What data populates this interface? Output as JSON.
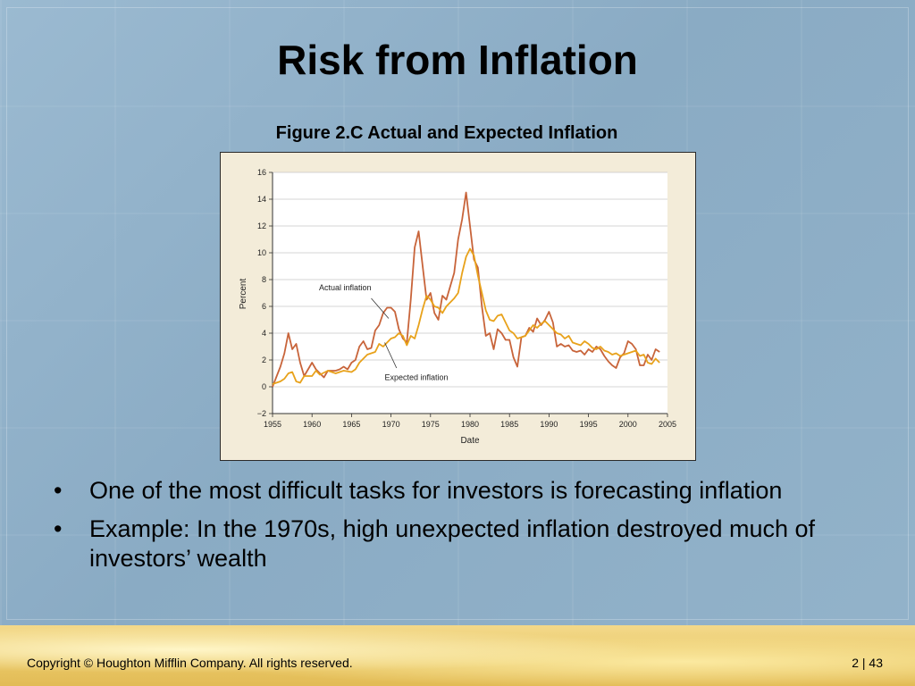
{
  "slide": {
    "title": "Risk from Inflation",
    "figure_caption": "Figure 2.C Actual and Expected Inflation",
    "bullets": [
      "One of the most difficult tasks for investors is forecasting inflation",
      "Example: In the 1970s,  high unexpected inflation destroyed much of investors’ wealth"
    ],
    "bullet_symbol": "•",
    "footer_copyright": "Copyright © Houghton Mifflin Company.  All rights reserved.",
    "footer_page": "2 | 43"
  },
  "chart_data": {
    "type": "line",
    "title": "",
    "xlabel": "Date",
    "ylabel": "Percent",
    "xlim": [
      1955,
      2005
    ],
    "ylim": [
      -2,
      16
    ],
    "x_ticks": [
      1955,
      1960,
      1965,
      1970,
      1975,
      1980,
      1985,
      1990,
      1995,
      2000,
      2005
    ],
    "y_ticks": [
      -2,
      0,
      2,
      4,
      6,
      8,
      10,
      12,
      14,
      16
    ],
    "grid": true,
    "annotations": [
      {
        "text": "Actual inflation",
        "series": "actual"
      },
      {
        "text": "Expected inflation",
        "series": "expected"
      }
    ],
    "series": [
      {
        "id": "actual",
        "color": "#c8643a",
        "points": [
          [
            1955.0,
            0.0
          ],
          [
            1956.0,
            1.5
          ],
          [
            1956.5,
            2.5
          ],
          [
            1957.0,
            4.0
          ],
          [
            1957.5,
            2.8
          ],
          [
            1958.0,
            3.2
          ],
          [
            1958.5,
            1.8
          ],
          [
            1959.0,
            0.8
          ],
          [
            1960.0,
            1.8
          ],
          [
            1960.5,
            1.3
          ],
          [
            1961.0,
            1.0
          ],
          [
            1961.5,
            0.7
          ],
          [
            1962.0,
            1.2
          ],
          [
            1963.0,
            1.2
          ],
          [
            1963.5,
            1.3
          ],
          [
            1964.0,
            1.5
          ],
          [
            1964.5,
            1.3
          ],
          [
            1965.0,
            1.8
          ],
          [
            1965.5,
            2.0
          ],
          [
            1966.0,
            3.0
          ],
          [
            1966.5,
            3.4
          ],
          [
            1967.0,
            2.8
          ],
          [
            1967.5,
            2.9
          ],
          [
            1968.0,
            4.2
          ],
          [
            1968.5,
            4.6
          ],
          [
            1969.0,
            5.5
          ],
          [
            1969.5,
            5.9
          ],
          [
            1970.0,
            5.9
          ],
          [
            1970.5,
            5.6
          ],
          [
            1971.0,
            4.3
          ],
          [
            1971.5,
            3.6
          ],
          [
            1972.0,
            3.3
          ],
          [
            1972.5,
            6.5
          ],
          [
            1973.0,
            10.4
          ],
          [
            1973.5,
            11.6
          ],
          [
            1974.0,
            9.0
          ],
          [
            1974.5,
            6.5
          ],
          [
            1975.0,
            7.0
          ],
          [
            1975.5,
            5.5
          ],
          [
            1976.0,
            5.0
          ],
          [
            1976.5,
            6.8
          ],
          [
            1977.0,
            6.5
          ],
          [
            1977.5,
            7.5
          ],
          [
            1978.0,
            8.5
          ],
          [
            1978.5,
            11.0
          ],
          [
            1979.0,
            12.5
          ],
          [
            1979.5,
            14.5
          ],
          [
            1980.0,
            12.0
          ],
          [
            1980.5,
            9.5
          ],
          [
            1981.0,
            8.9
          ],
          [
            1981.5,
            6.0
          ],
          [
            1982.0,
            3.8
          ],
          [
            1982.5,
            4.0
          ],
          [
            1983.0,
            2.8
          ],
          [
            1983.5,
            4.3
          ],
          [
            1984.0,
            4.0
          ],
          [
            1984.5,
            3.5
          ],
          [
            1985.0,
            3.5
          ],
          [
            1985.5,
            2.2
          ],
          [
            1986.0,
            1.5
          ],
          [
            1986.5,
            3.7
          ],
          [
            1987.0,
            3.8
          ],
          [
            1987.5,
            4.4
          ],
          [
            1988.0,
            4.1
          ],
          [
            1988.5,
            5.1
          ],
          [
            1989.0,
            4.6
          ],
          [
            1989.5,
            5.0
          ],
          [
            1990.0,
            5.6
          ],
          [
            1990.5,
            4.8
          ],
          [
            1991.0,
            3.0
          ],
          [
            1991.5,
            3.2
          ],
          [
            1992.0,
            3.0
          ],
          [
            1992.5,
            3.1
          ],
          [
            1993.0,
            2.7
          ],
          [
            1993.5,
            2.6
          ],
          [
            1994.0,
            2.7
          ],
          [
            1994.5,
            2.4
          ],
          [
            1995.0,
            2.8
          ],
          [
            1995.5,
            2.6
          ],
          [
            1996.0,
            3.0
          ],
          [
            1996.5,
            2.8
          ],
          [
            1997.0,
            2.3
          ],
          [
            1997.5,
            1.9
          ],
          [
            1998.0,
            1.6
          ],
          [
            1998.5,
            1.4
          ],
          [
            1999.0,
            2.2
          ],
          [
            1999.5,
            2.5
          ],
          [
            2000.0,
            3.4
          ],
          [
            2000.5,
            3.2
          ],
          [
            2001.0,
            2.8
          ],
          [
            2001.5,
            1.6
          ],
          [
            2002.0,
            1.6
          ],
          [
            2002.5,
            2.4
          ],
          [
            2003.0,
            2.0
          ],
          [
            2003.5,
            2.8
          ],
          [
            2004.0,
            2.6
          ]
        ]
      },
      {
        "id": "expected",
        "color": "#e8a21b",
        "points": [
          [
            1955.0,
            0.2
          ],
          [
            1956.0,
            0.4
          ],
          [
            1956.5,
            0.6
          ],
          [
            1957.0,
            1.0
          ],
          [
            1957.5,
            1.1
          ],
          [
            1958.0,
            0.4
          ],
          [
            1958.5,
            0.3
          ],
          [
            1959.0,
            0.8
          ],
          [
            1960.0,
            0.8
          ],
          [
            1960.5,
            1.2
          ],
          [
            1961.0,
            0.9
          ],
          [
            1962.0,
            1.2
          ],
          [
            1963.0,
            1.0
          ],
          [
            1964.0,
            1.2
          ],
          [
            1965.0,
            1.1
          ],
          [
            1965.5,
            1.3
          ],
          [
            1966.0,
            1.8
          ],
          [
            1967.0,
            2.4
          ],
          [
            1968.0,
            2.6
          ],
          [
            1968.5,
            3.2
          ],
          [
            1969.0,
            3.0
          ],
          [
            1970.0,
            3.6
          ],
          [
            1970.5,
            3.7
          ],
          [
            1971.0,
            4.0
          ],
          [
            1971.5,
            3.8
          ],
          [
            1972.0,
            3.1
          ],
          [
            1972.5,
            3.8
          ],
          [
            1973.0,
            3.6
          ],
          [
            1973.5,
            4.6
          ],
          [
            1974.0,
            5.8
          ],
          [
            1974.5,
            6.8
          ],
          [
            1975.0,
            6.5
          ],
          [
            1975.5,
            6.0
          ],
          [
            1976.0,
            5.9
          ],
          [
            1976.5,
            5.5
          ],
          [
            1977.0,
            6.0
          ],
          [
            1977.5,
            6.3
          ],
          [
            1978.0,
            6.6
          ],
          [
            1978.5,
            7.0
          ],
          [
            1979.0,
            8.5
          ],
          [
            1979.5,
            9.7
          ],
          [
            1980.0,
            10.3
          ],
          [
            1980.5,
            9.8
          ],
          [
            1981.0,
            8.3
          ],
          [
            1981.5,
            7.0
          ],
          [
            1982.0,
            5.7
          ],
          [
            1982.5,
            5.0
          ],
          [
            1983.0,
            4.9
          ],
          [
            1983.5,
            5.3
          ],
          [
            1984.0,
            5.4
          ],
          [
            1984.5,
            4.8
          ],
          [
            1985.0,
            4.2
          ],
          [
            1985.5,
            4.0
          ],
          [
            1986.0,
            3.6
          ],
          [
            1986.5,
            3.7
          ],
          [
            1987.0,
            3.8
          ],
          [
            1987.5,
            4.2
          ],
          [
            1988.0,
            4.6
          ],
          [
            1988.5,
            4.4
          ],
          [
            1989.0,
            4.7
          ],
          [
            1989.5,
            4.9
          ],
          [
            1990.0,
            4.6
          ],
          [
            1990.5,
            4.3
          ],
          [
            1991.0,
            4.0
          ],
          [
            1991.5,
            3.9
          ],
          [
            1992.0,
            3.6
          ],
          [
            1992.5,
            3.8
          ],
          [
            1993.0,
            3.3
          ],
          [
            1993.5,
            3.2
          ],
          [
            1994.0,
            3.1
          ],
          [
            1994.5,
            3.4
          ],
          [
            1995.0,
            3.2
          ],
          [
            1995.5,
            2.9
          ],
          [
            1996.0,
            2.8
          ],
          [
            1996.5,
            3.0
          ],
          [
            1997.0,
            2.7
          ],
          [
            1997.5,
            2.6
          ],
          [
            1998.0,
            2.4
          ],
          [
            1998.5,
            2.5
          ],
          [
            1999.0,
            2.3
          ],
          [
            1999.5,
            2.4
          ],
          [
            2000.0,
            2.5
          ],
          [
            2000.5,
            2.6
          ],
          [
            2001.0,
            2.7
          ],
          [
            2001.5,
            2.3
          ],
          [
            2002.0,
            2.4
          ],
          [
            2002.5,
            1.8
          ],
          [
            2003.0,
            1.7
          ],
          [
            2003.5,
            2.1
          ],
          [
            2004.0,
            1.8
          ]
        ]
      }
    ]
  }
}
